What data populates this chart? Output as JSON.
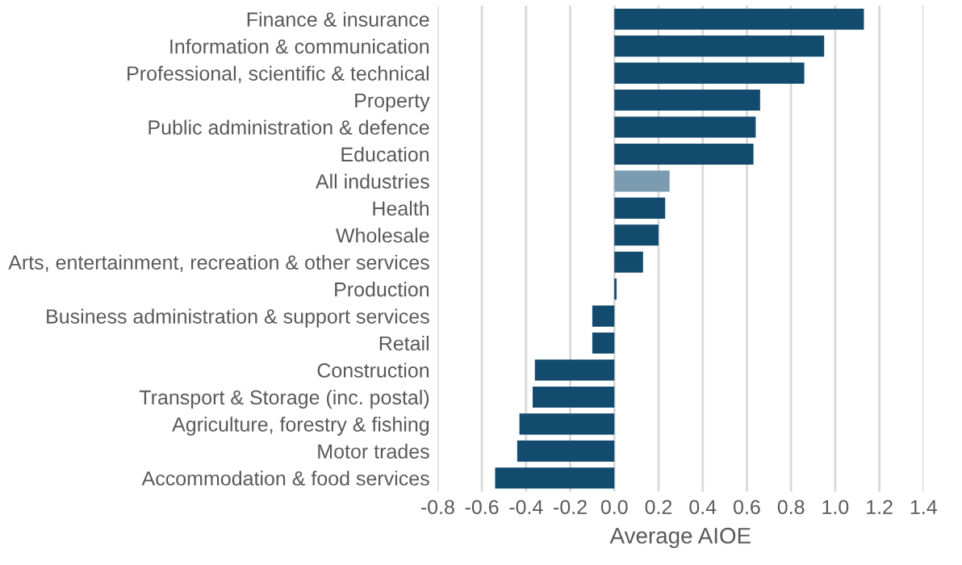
{
  "chart_data": {
    "type": "bar",
    "orientation": "horizontal",
    "xlabel": "Average AIOE",
    "categories": [
      "Finance & insurance",
      "Information & communication",
      "Professional, scientific & technical",
      "Property",
      "Public administration & defence",
      "Education",
      "All industries",
      "Health",
      "Wholesale",
      "Arts, entertainment, recreation & other services",
      "Production",
      "Business administration & support services",
      "Retail",
      "Construction",
      "Transport & Storage (inc. postal)",
      "Agriculture, forestry & fishing",
      "Motor trades",
      "Accommodation & food services"
    ],
    "values": [
      1.13,
      0.95,
      0.86,
      0.66,
      0.64,
      0.63,
      0.25,
      0.23,
      0.2,
      0.13,
      0.01,
      -0.1,
      -0.1,
      -0.36,
      -0.37,
      -0.43,
      -0.44,
      -0.54
    ],
    "colors": [
      "#134b6e",
      "#134b6e",
      "#134b6e",
      "#134b6e",
      "#134b6e",
      "#134b6e",
      "#7b9bb1",
      "#134b6e",
      "#134b6e",
      "#134b6e",
      "#134b6e",
      "#134b6e",
      "#134b6e",
      "#134b6e",
      "#134b6e",
      "#134b6e",
      "#134b6e",
      "#134b6e"
    ],
    "xlim": [
      -0.8,
      1.4
    ],
    "xticks": [
      {
        "value": -0.8,
        "label": "-0.8"
      },
      {
        "value": -0.6,
        "label": "-0.6"
      },
      {
        "value": -0.4,
        "label": "-0.4"
      },
      {
        "value": -0.2,
        "label": "-0.2"
      },
      {
        "value": 0,
        "label": "0.0"
      },
      {
        "value": 0.2,
        "label": "0.2"
      },
      {
        "value": 0.4,
        "label": "0.4"
      },
      {
        "value": 0.6,
        "label": "0.6"
      },
      {
        "value": 0.8,
        "label": "0.8"
      },
      {
        "value": 1.0,
        "label": "1.0"
      },
      {
        "value": 1.2,
        "label": "1.2"
      },
      {
        "value": 1.4,
        "label": "1.4"
      }
    ],
    "grid": "x"
  }
}
